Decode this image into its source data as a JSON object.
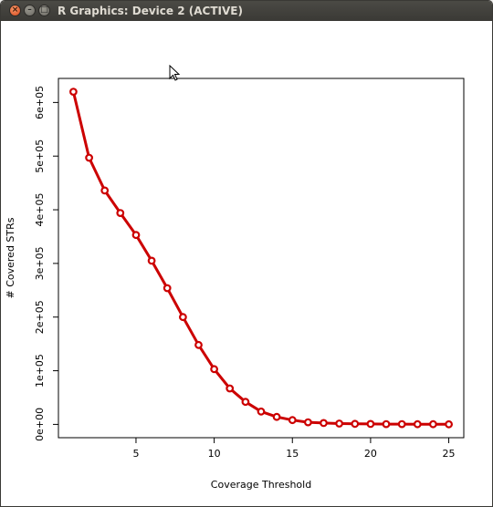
{
  "window": {
    "title": "R Graphics: Device 2 (ACTIVE)",
    "close_glyph": "×",
    "min_glyph": "–",
    "max_glyph": "□"
  },
  "colors": {
    "line": "#cc0000",
    "point_fill": "#ffffff",
    "axis": "#000000"
  },
  "chart_data": {
    "type": "line",
    "title": "",
    "xlabel": "Coverage Threshold",
    "ylabel": "# Covered STRs",
    "xlim": [
      0.04,
      25.96
    ],
    "ylim": [
      -24800,
      644800
    ],
    "x_ticks": [
      5,
      10,
      15,
      20,
      25
    ],
    "x_tick_labels": [
      "5",
      "10",
      "15",
      "20",
      "25"
    ],
    "y_ticks": [
      0,
      100000,
      200000,
      300000,
      400000,
      500000,
      600000
    ],
    "y_tick_labels": [
      "0e+00",
      "1e+05",
      "2e+05",
      "3e+05",
      "4e+05",
      "5e+05",
      "6e+05"
    ],
    "grid": false,
    "legend": "none",
    "x": [
      1,
      2,
      3,
      4,
      5,
      6,
      7,
      8,
      9,
      10,
      11,
      12,
      13,
      14,
      15,
      16,
      17,
      18,
      19,
      20,
      21,
      22,
      23,
      24,
      25
    ],
    "y": [
      620000,
      497000,
      436000,
      394000,
      353000,
      305000,
      254000,
      200000,
      148000,
      103000,
      67000,
      42000,
      24000,
      14000,
      8000,
      4000,
      2500,
      1500,
      1000,
      800,
      600,
      500,
      400,
      300,
      200
    ]
  }
}
